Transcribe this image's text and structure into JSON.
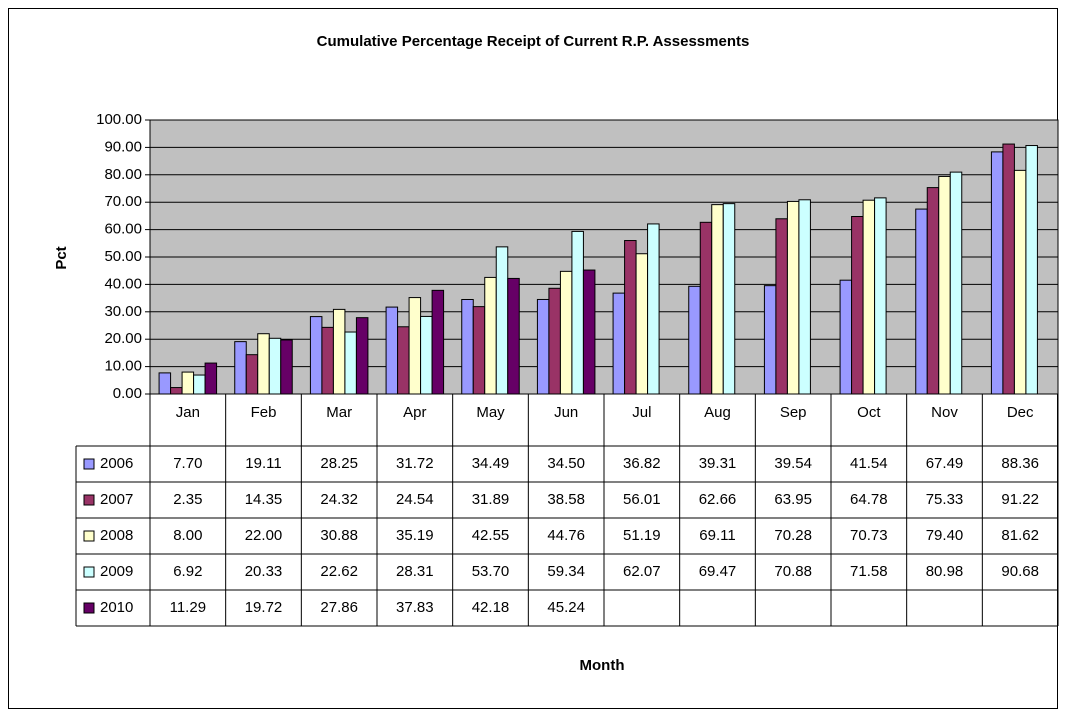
{
  "chart_data": {
    "type": "bar",
    "title": "Cumulative Percentage Receipt of Current R.P. Assessments",
    "x_label": "Month",
    "y_label": "Pct",
    "categories": [
      "Jan",
      "Feb",
      "Mar",
      "Apr",
      "May",
      "Jun",
      "Jul",
      "Aug",
      "Sep",
      "Oct",
      "Nov",
      "Dec"
    ],
    "series": [
      {
        "name": "2006",
        "color": "#9999ff",
        "values": [
          7.7,
          19.11,
          28.25,
          31.72,
          34.49,
          34.5,
          36.82,
          39.31,
          39.54,
          41.54,
          67.49,
          88.36
        ],
        "value_labels": [
          "7.70",
          "19.11",
          "28.25",
          "31.72",
          "34.49",
          "34.50",
          "36.82",
          "39.31",
          "39.54",
          "41.54",
          "67.49",
          "88.36"
        ]
      },
      {
        "name": "2007",
        "color": "#993366",
        "values": [
          2.35,
          14.35,
          24.32,
          24.54,
          31.89,
          38.58,
          56.01,
          62.66,
          63.95,
          64.78,
          75.33,
          91.22
        ],
        "value_labels": [
          "2.35",
          "14.35",
          "24.32",
          "24.54",
          "31.89",
          "38.58",
          "56.01",
          "62.66",
          "63.95",
          "64.78",
          "75.33",
          "91.22"
        ]
      },
      {
        "name": "2008",
        "color": "#ffffcc",
        "values": [
          8.0,
          22.0,
          30.88,
          35.19,
          42.55,
          44.76,
          51.19,
          69.11,
          70.28,
          70.73,
          79.4,
          81.62
        ],
        "value_labels": [
          "8.00",
          "22.00",
          "30.88",
          "35.19",
          "42.55",
          "44.76",
          "51.19",
          "69.11",
          "70.28",
          "70.73",
          "79.40",
          "81.62"
        ]
      },
      {
        "name": "2009",
        "color": "#ccffff",
        "values": [
          6.92,
          20.33,
          22.62,
          28.31,
          53.7,
          59.34,
          62.07,
          69.47,
          70.88,
          71.58,
          80.98,
          90.68
        ],
        "value_labels": [
          "6.92",
          "20.33",
          "22.62",
          "28.31",
          "53.70",
          "59.34",
          "62.07",
          "69.47",
          "70.88",
          "71.58",
          "80.98",
          "90.68"
        ]
      },
      {
        "name": "2010",
        "color": "#660066",
        "values": [
          11.29,
          19.72,
          27.86,
          37.83,
          42.18,
          45.24,
          null,
          null,
          null,
          null,
          null,
          null
        ],
        "value_labels": [
          "11.29",
          "19.72",
          "27.86",
          "37.83",
          "42.18",
          "45.24",
          null,
          null,
          null,
          null,
          null,
          null
        ]
      }
    ],
    "ylim": [
      0,
      100
    ],
    "yticks": [
      {
        "value": 0,
        "label": "0.00"
      },
      {
        "value": 10,
        "label": "10.00"
      },
      {
        "value": 20,
        "label": "20.00"
      },
      {
        "value": 30,
        "label": "30.00"
      },
      {
        "value": 40,
        "label": "40.00"
      },
      {
        "value": 50,
        "label": "50.00"
      },
      {
        "value": 60,
        "label": "60.00"
      },
      {
        "value": 70,
        "label": "70.00"
      },
      {
        "value": 80,
        "label": "80.00"
      },
      {
        "value": 90,
        "label": "90.00"
      },
      {
        "value": 100,
        "label": "100.00"
      }
    ],
    "grid": true,
    "plot_background": "#c0c0c0"
  }
}
